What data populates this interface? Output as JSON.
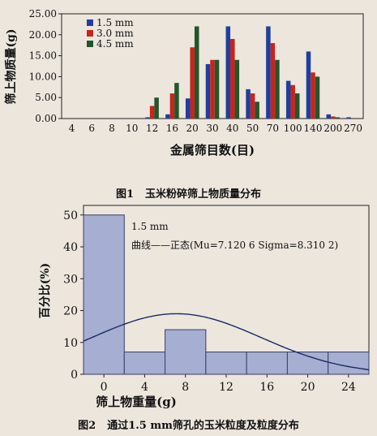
{
  "figure1": {
    "caption_label": "图1",
    "caption_text": "玉米粉碎筛上物质量分布",
    "chart_data": {
      "type": "bar",
      "xlabel": "金属筛目数(目)",
      "ylabel": "筛上物质量(g)",
      "categories": [
        "4",
        "6",
        "8",
        "10",
        "12",
        "16",
        "20",
        "30",
        "40",
        "50",
        "70",
        "100",
        "140",
        "200",
        "270"
      ],
      "ylim": [
        0,
        25
      ],
      "yticks": [
        "0.00",
        "5.00",
        "10.00",
        "15.00",
        "20.00",
        "25.00"
      ],
      "legend_position": "top-left",
      "series": [
        {
          "name": "1.5 mm",
          "color": "#1f3f9e",
          "values": [
            0,
            0,
            0,
            0,
            0.3,
            1.0,
            4.8,
            13.0,
            22.0,
            7.0,
            22.0,
            9.0,
            16.0,
            1.0,
            0.3
          ]
        },
        {
          "name": "3.0 mm",
          "color": "#c8241d",
          "values": [
            0,
            0,
            0,
            0,
            3.0,
            6.0,
            17.0,
            14.0,
            19.0,
            6.0,
            18.0,
            8.0,
            11.0,
            0.5,
            0
          ]
        },
        {
          "name": "4.5 mm",
          "color": "#23552a",
          "values": [
            0,
            0,
            0,
            0,
            5.0,
            8.5,
            22.0,
            14.0,
            14.0,
            4.0,
            14.0,
            6.0,
            10.0,
            0.3,
            0
          ]
        }
      ]
    }
  },
  "figure2": {
    "caption_label": "图2",
    "caption_text": "通过1.5 mm筛孔的玉米粒度及粒度分布",
    "chart_data": {
      "type": "bar",
      "subtype": "histogram",
      "xlabel": "筛上物重量(g)",
      "ylabel": "百分比(%)",
      "annotation_lines": [
        "1.5 mm",
        "曲线——正态(Mu=7.120 6 Sigma=8.310 2)"
      ],
      "bins": [
        [
          -2,
          2
        ],
        [
          2,
          6
        ],
        [
          6,
          10
        ],
        [
          10,
          14
        ],
        [
          14,
          18
        ],
        [
          18,
          22
        ],
        [
          22,
          26
        ]
      ],
      "values": [
        50,
        7,
        14,
        7,
        7,
        7,
        7
      ],
      "x_ticks": [
        0,
        4,
        8,
        12,
        16,
        20,
        24
      ],
      "y_ticks": [
        0,
        10,
        20,
        30,
        40,
        50
      ],
      "xlim": [
        -2,
        26
      ],
      "ylim": [
        0,
        53
      ],
      "normal_curve": {
        "mu": 7.1206,
        "sigma": 8.3102
      },
      "bar_color": "#a6aed2",
      "curve_color": "#1a2a66"
    }
  }
}
